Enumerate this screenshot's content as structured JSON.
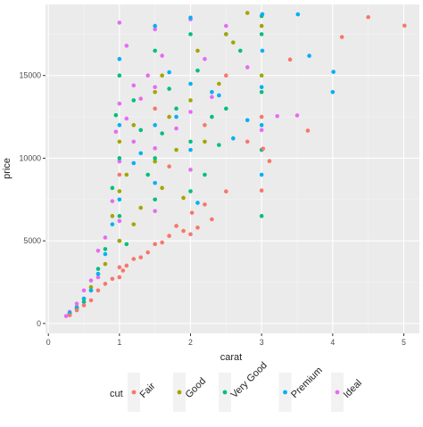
{
  "chart_data": {
    "type": "scatter",
    "xlabel": "carat",
    "ylabel": "price",
    "xlim": [
      -0.04,
      5.22
    ],
    "ylim": [
      -600,
      19300
    ],
    "x_ticks": [
      0,
      1,
      2,
      3,
      4,
      5
    ],
    "y_ticks": [
      0,
      5000,
      10000,
      15000
    ],
    "x_tick_labels": [
      "0",
      "1",
      "2",
      "3",
      "4",
      "5"
    ],
    "y_tick_labels": [
      "0",
      "5000",
      "10000",
      "15000"
    ],
    "grid": true,
    "legend": {
      "title": "cut",
      "position": "bottom",
      "entries": [
        "Fair",
        "Good",
        "Very Good",
        "Premium",
        "Ideal"
      ]
    },
    "colors": {
      "Fair": "#F8766D",
      "Good": "#A3A500",
      "Very Good": "#00BF7D",
      "Premium": "#00B0F6",
      "Ideal": "#E76BF3",
      "panel": "#EBEBEB",
      "grid_major": "#FFFFFF",
      "grid_minor": "#F5F5F5"
    },
    "series": [
      {
        "name": "Fair",
        "points": [
          [
            4.5,
            18531
          ],
          [
            5.01,
            18018
          ],
          [
            4.13,
            17329
          ],
          [
            3.4,
            15964
          ],
          [
            3.65,
            11668
          ],
          [
            3.02,
            10577
          ],
          [
            3.11,
            9823
          ],
          [
            3.0,
            8044
          ],
          [
            2.5,
            7990
          ],
          [
            2.02,
            6700
          ],
          [
            2.2,
            7200
          ],
          [
            2.3,
            6300
          ],
          [
            2.1,
            5800
          ],
          [
            2.0,
            5400
          ],
          [
            1.9,
            5600
          ],
          [
            1.8,
            5900
          ],
          [
            1.7,
            5300
          ],
          [
            1.6,
            4900
          ],
          [
            1.5,
            4800
          ],
          [
            1.4,
            4300
          ],
          [
            1.3,
            4000
          ],
          [
            1.2,
            3900
          ],
          [
            1.1,
            3500
          ],
          [
            1.05,
            3200
          ],
          [
            1.0,
            3400
          ],
          [
            1.0,
            2800
          ],
          [
            0.9,
            2700
          ],
          [
            0.8,
            2400
          ],
          [
            0.7,
            2000
          ],
          [
            0.6,
            1400
          ],
          [
            0.5,
            1100
          ],
          [
            0.4,
            800
          ],
          [
            0.3,
            500
          ],
          [
            2.5,
            15000
          ],
          [
            1.5,
            13000
          ],
          [
            1.0,
            9000
          ],
          [
            2.2,
            12000
          ],
          [
            1.7,
            9500
          ],
          [
            3.0,
            12500
          ],
          [
            2.8,
            11000
          ]
        ]
      },
      {
        "name": "Good",
        "points": [
          [
            2.8,
            18788
          ],
          [
            3.0,
            18000
          ],
          [
            2.6,
            17000
          ],
          [
            2.1,
            16500
          ],
          [
            1.6,
            15000
          ],
          [
            1.5,
            14000
          ],
          [
            1.2,
            12000
          ],
          [
            1.0,
            11000
          ],
          [
            1.0,
            8000
          ],
          [
            1.1,
            9000
          ],
          [
            0.9,
            6500
          ],
          [
            1.5,
            9800
          ],
          [
            2.0,
            13500
          ],
          [
            2.2,
            11000
          ],
          [
            1.8,
            10500
          ],
          [
            1.3,
            7000
          ],
          [
            1.6,
            8200
          ],
          [
            1.9,
            7600
          ],
          [
            0.7,
            3000
          ],
          [
            0.6,
            2200
          ],
          [
            0.5,
            1500
          ],
          [
            0.4,
            1000
          ],
          [
            0.3,
            550
          ],
          [
            1.7,
            12500
          ],
          [
            2.4,
            14500
          ],
          [
            1.2,
            6000
          ],
          [
            1.0,
            5000
          ],
          [
            0.8,
            3600
          ],
          [
            2.5,
            17500
          ],
          [
            3.0,
            15000
          ]
        ]
      },
      {
        "name": "Very Good",
        "points": [
          [
            3.0,
            18600
          ],
          [
            3.0,
            17500
          ],
          [
            3.0,
            14000
          ],
          [
            3.0,
            10500
          ],
          [
            3.0,
            6500
          ],
          [
            2.7,
            16500
          ],
          [
            2.5,
            13000
          ],
          [
            2.3,
            12500
          ],
          [
            2.2,
            9000
          ],
          [
            2.0,
            17500
          ],
          [
            2.0,
            11000
          ],
          [
            2.0,
            8000
          ],
          [
            1.8,
            13000
          ],
          [
            1.6,
            11500
          ],
          [
            1.5,
            16500
          ],
          [
            1.5,
            10000
          ],
          [
            1.5,
            7500
          ],
          [
            1.4,
            9000
          ],
          [
            1.2,
            13500
          ],
          [
            1.0,
            15000
          ],
          [
            1.0,
            10000
          ],
          [
            1.0,
            6500
          ],
          [
            0.9,
            8200
          ],
          [
            0.8,
            4500
          ],
          [
            0.7,
            3300
          ],
          [
            0.6,
            2000
          ],
          [
            0.5,
            1300
          ],
          [
            0.4,
            900
          ],
          [
            0.3,
            600
          ],
          [
            1.1,
            4800
          ],
          [
            1.7,
            14200
          ],
          [
            2.1,
            15300
          ],
          [
            2.4,
            10800
          ],
          [
            1.3,
            11700
          ],
          [
            0.95,
            12600
          ]
        ]
      },
      {
        "name": "Premium",
        "points": [
          [
            4.01,
            15223
          ],
          [
            4.0,
            14000
          ],
          [
            3.67,
            16193
          ],
          [
            3.51,
            18701
          ],
          [
            3.01,
            18710
          ],
          [
            3.01,
            16500
          ],
          [
            3.0,
            14300
          ],
          [
            3.0,
            12000
          ],
          [
            3.0,
            9000
          ],
          [
            2.5,
            17500
          ],
          [
            2.3,
            14000
          ],
          [
            2.0,
            18500
          ],
          [
            2.0,
            14500
          ],
          [
            2.0,
            10500
          ],
          [
            2.1,
            7300
          ],
          [
            1.8,
            12500
          ],
          [
            1.5,
            18000
          ],
          [
            1.5,
            12000
          ],
          [
            1.5,
            8500
          ],
          [
            1.3,
            10300
          ],
          [
            1.0,
            16000
          ],
          [
            1.0,
            12000
          ],
          [
            1.0,
            7500
          ],
          [
            1.0,
            5000
          ],
          [
            0.9,
            6000
          ],
          [
            0.8,
            4200
          ],
          [
            0.7,
            3000
          ],
          [
            0.6,
            2000
          ],
          [
            0.5,
            1500
          ],
          [
            0.4,
            950
          ],
          [
            0.3,
            650
          ],
          [
            2.4,
            13800
          ],
          [
            1.7,
            15200
          ],
          [
            1.2,
            9700
          ],
          [
            2.6,
            11200
          ],
          [
            2.8,
            12300
          ]
        ]
      },
      {
        "name": "Ideal",
        "points": [
          [
            3.5,
            12587
          ],
          [
            3.22,
            12545
          ],
          [
            3.0,
            11700
          ],
          [
            2.8,
            15500
          ],
          [
            2.5,
            18000
          ],
          [
            2.2,
            16000
          ],
          [
            2.0,
            18400
          ],
          [
            2.0,
            12800
          ],
          [
            2.0,
            9300
          ],
          [
            1.8,
            11800
          ],
          [
            1.5,
            17800
          ],
          [
            1.5,
            14300
          ],
          [
            1.5,
            10600
          ],
          [
            1.5,
            6800
          ],
          [
            1.3,
            13600
          ],
          [
            1.2,
            11000
          ],
          [
            1.1,
            16800
          ],
          [
            1.0,
            18200
          ],
          [
            1.0,
            13300
          ],
          [
            1.0,
            9800
          ],
          [
            1.0,
            6200
          ],
          [
            0.9,
            7400
          ],
          [
            0.8,
            5200
          ],
          [
            0.7,
            4400
          ],
          [
            0.7,
            2800
          ],
          [
            0.6,
            2600
          ],
          [
            0.5,
            2000
          ],
          [
            0.4,
            1200
          ],
          [
            0.3,
            700
          ],
          [
            0.25,
            450
          ],
          [
            1.6,
            16200
          ],
          [
            1.4,
            15000
          ],
          [
            1.2,
            14400
          ],
          [
            1.1,
            12400
          ],
          [
            0.95,
            11600
          ],
          [
            2.3,
            13700
          ]
        ]
      }
    ]
  }
}
